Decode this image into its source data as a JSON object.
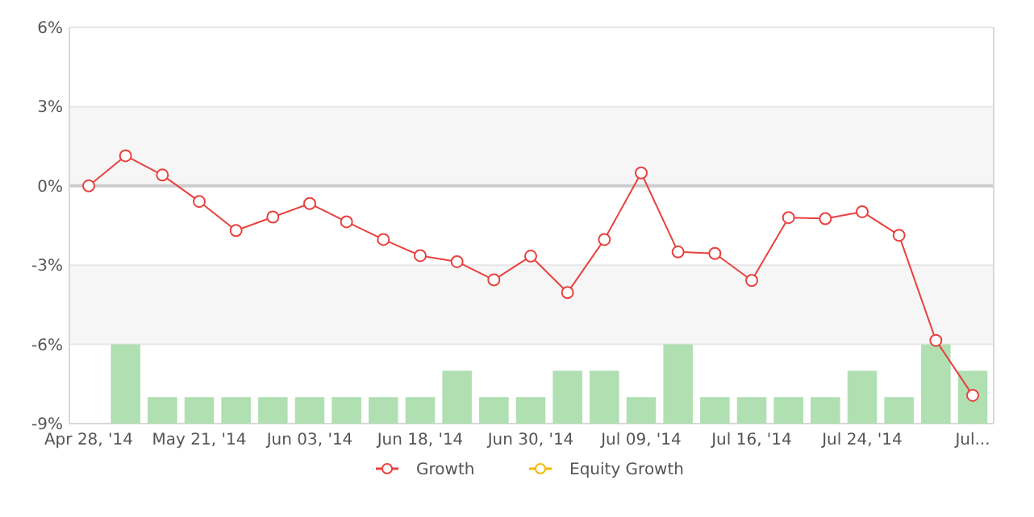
{
  "chart_data": {
    "type": "line",
    "categories": [
      "Apr 28, '14",
      null,
      null,
      "May 21, '14",
      null,
      null,
      "Jun 03, '14",
      null,
      null,
      "Jun 18, '14",
      null,
      null,
      "Jun 30, '14",
      null,
      null,
      "Jul 09, '14",
      null,
      null,
      "Jul 16, '14",
      null,
      null,
      "Jul 24, '14",
      null,
      null,
      "Jul..."
    ],
    "series": [
      {
        "type": "bar",
        "color": "#b0dfb2",
        "base": [
          null,
          -9,
          -9,
          -9,
          -9,
          -9,
          -9,
          -9,
          -9,
          -9,
          -9,
          -9,
          -9,
          -9,
          -9,
          -9,
          -9,
          -9,
          -9,
          -9,
          -9,
          -9,
          -9,
          -9,
          -9
        ],
        "values": [
          null,
          3,
          1,
          1,
          1,
          1,
          1,
          1,
          1,
          1,
          2,
          1,
          1,
          2,
          2,
          1,
          3,
          1,
          1,
          1,
          1,
          2,
          1,
          3,
          2
        ]
      },
      {
        "name": "Growth",
        "color": "#e8413e",
        "values": [
          0,
          1.14,
          0.41,
          -0.59,
          -1.69,
          -1.18,
          -0.67,
          -1.36,
          -2.03,
          -2.64,
          -2.87,
          -3.56,
          -2.66,
          -4.04,
          -2.03,
          0.49,
          -2.5,
          -2.56,
          -3.58,
          -1.2,
          -1.24,
          -0.98,
          -1.87,
          -5.85,
          -7.93
        ]
      },
      {
        "name": "Equity Growth",
        "color": "#f5b800",
        "values": [
          null,
          null,
          null,
          null,
          null,
          null,
          null,
          null,
          null,
          null,
          null,
          null,
          null,
          null,
          null,
          null,
          null,
          null,
          null,
          null,
          null,
          null,
          null,
          null,
          null
        ]
      }
    ],
    "ylim": [
      -9,
      6
    ],
    "yticks": [
      {
        "value": -9,
        "label": "-9%"
      },
      {
        "value": -6,
        "label": "-6%"
      },
      {
        "value": -3,
        "label": "-3%"
      },
      {
        "value": 0,
        "label": "0%"
      },
      {
        "value": 3,
        "label": "3%"
      },
      {
        "value": 6,
        "label": "6%"
      }
    ],
    "grid": "y",
    "bands": [
      {
        "axis": "y",
        "from": 0,
        "to": 3,
        "color": "#f6f6f6"
      },
      {
        "axis": "y",
        "from": -6,
        "to": -3,
        "color": "#f6f6f6"
      }
    ],
    "ref_lines": [
      {
        "axis": "y",
        "value": 0,
        "color": "#cccccc"
      }
    ],
    "marker": "circle",
    "line_style": "solid",
    "legend": "bottom"
  }
}
